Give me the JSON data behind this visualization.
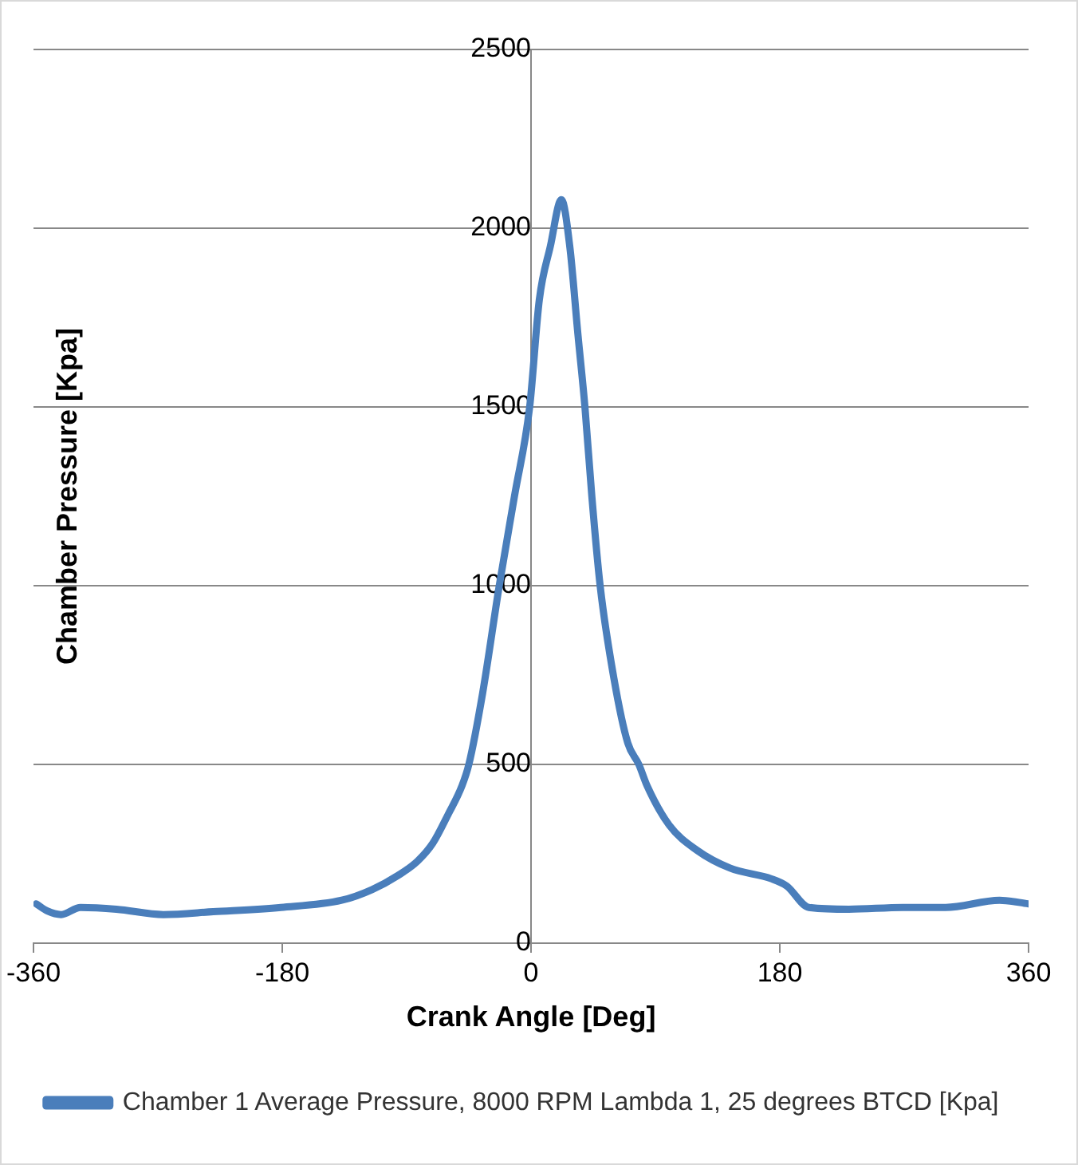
{
  "chart_data": {
    "type": "line",
    "xlabel": "Crank Angle [Deg]",
    "ylabel": "Chamber Pressure [Kpa]",
    "xlim": [
      -360,
      360
    ],
    "xticks": [
      -360,
      -180,
      0,
      180,
      360
    ],
    "ylim": [
      0,
      2500
    ],
    "yticks": [
      0,
      500,
      1000,
      1500,
      2000,
      2500
    ],
    "grid": "y",
    "legend": "bottom",
    "marker": "none",
    "line_style": "solid",
    "series": [
      {
        "name": "Chamber 1 Average Pressure, 8000 RPM Lambda 1, 25 degrees BTCD [Kpa]",
        "color": "#4a7ebb",
        "x": [
          -358,
          -350,
          -340,
          -326,
          -300,
          -266,
          -230,
          -181,
          -137,
          -115,
          -96,
          -82,
          -71,
          -60,
          -50,
          -45,
          -35,
          -23,
          -12,
          -1,
          6,
          14,
          22,
          28,
          34,
          39,
          44,
          50,
          60,
          70,
          78,
          84,
          100,
          120,
          144,
          174,
          185,
          201,
          230,
          269,
          300,
          339,
          360
        ],
        "values": [
          110,
          90,
          80,
          100,
          95,
          80,
          88,
          100,
          120,
          150,
          190,
          230,
          280,
          360,
          440,
          500,
          700,
          1000,
          1250,
          1500,
          1800,
          1950,
          2080,
          1950,
          1700,
          1500,
          1250,
          1000,
          740,
          560,
          500,
          440,
          330,
          260,
          210,
          180,
          160,
          100,
          95,
          100,
          100,
          120,
          110
        ]
      }
    ]
  }
}
